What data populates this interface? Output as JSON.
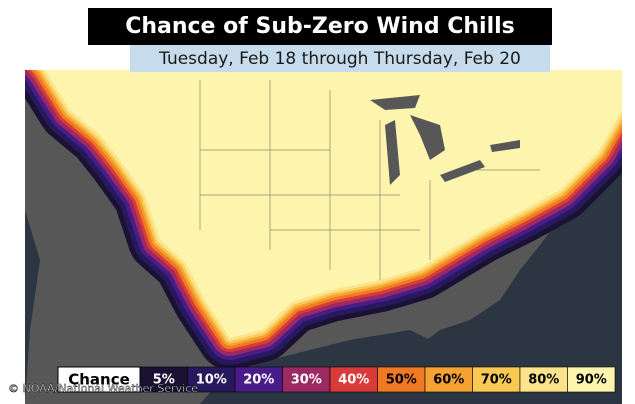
{
  "header": {
    "title": "Chance of Sub-Zero Wind Chills",
    "subtitle": "Tuesday, Feb 18 through Thursday, Feb 20"
  },
  "legend": {
    "label": "Chance",
    "items": [
      {
        "label": "5%",
        "color": "#1b1233",
        "text_color": "#ffffff"
      },
      {
        "label": "10%",
        "color": "#27195e",
        "text_color": "#ffffff"
      },
      {
        "label": "20%",
        "color": "#4a1c8a",
        "text_color": "#ffffff"
      },
      {
        "label": "30%",
        "color": "#9b2a62",
        "text_color": "#ffffff"
      },
      {
        "label": "40%",
        "color": "#d93b3b",
        "text_color": "#ffffff"
      },
      {
        "label": "50%",
        "color": "#f07a22",
        "text_color": "#000000"
      },
      {
        "label": "60%",
        "color": "#f6a233",
        "text_color": "#000000"
      },
      {
        "label": "70%",
        "color": "#f9c954",
        "text_color": "#000000"
      },
      {
        "label": "80%",
        "color": "#fbe48c",
        "text_color": "#000000"
      },
      {
        "label": "90%",
        "color": "#fdf5ae",
        "text_color": "#000000"
      }
    ]
  },
  "credit": "© NOAA/National Weather Service"
}
